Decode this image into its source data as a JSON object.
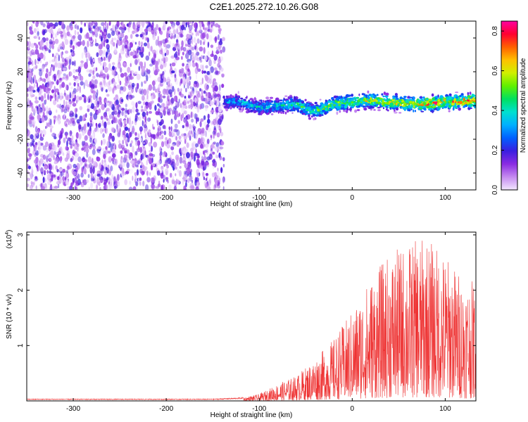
{
  "title": "C2E1.2025.272.10.26.G08",
  "chart_data": [
    {
      "type": "heatmap",
      "xlabel": "Height of straight line (km)",
      "ylabel": "Frequency (Hz)",
      "xlim": [
        -350,
        133
      ],
      "ylim": [
        -50,
        50
      ],
      "xticks": [
        -300,
        -200,
        -100,
        0,
        100
      ],
      "yticks": [
        -40,
        -20,
        0,
        20,
        40
      ],
      "colorbar": {
        "label": "Normalized spectral amplitude",
        "range": [
          0,
          0.85
        ],
        "ticks": [
          0.0,
          0.2,
          0.4,
          0.6,
          0.8
        ],
        "colors": [
          "#f2e6ff",
          "#c58af0",
          "#8a2be2",
          "#3a1ee0",
          "#0060ff",
          "#00b0ff",
          "#00e0d0",
          "#00e060",
          "#60f000",
          "#d0f000",
          "#ffc000",
          "#ff6000",
          "#ff0030",
          "#ff00a0"
        ]
      },
      "noise_region": {
        "x_from": -350,
        "x_to": -138,
        "amplitude": [
          0.0,
          0.2
        ]
      },
      "signal_band": {
        "x_from": -138,
        "x_to": 133,
        "center_frequency": [
          [
            -138,
            2
          ],
          [
            -120,
            2
          ],
          [
            -100,
            -1
          ],
          [
            -80,
            0
          ],
          [
            -60,
            1
          ],
          [
            -45,
            -3
          ],
          [
            -30,
            -2
          ],
          [
            -20,
            1
          ],
          [
            0,
            2
          ],
          [
            20,
            3
          ],
          [
            40,
            2
          ],
          [
            60,
            1
          ],
          [
            80,
            1
          ],
          [
            100,
            2
          ],
          [
            133,
            3
          ]
        ],
        "half_width_hz": 4,
        "peak_amplitude": 0.85
      }
    },
    {
      "type": "line",
      "xlabel": "Height of straight line (km)",
      "ylabel": "SNR (10 * v/v)",
      "multiplier_label": "(x10",
      "multiplier_exponent": "4",
      "multiplier_close": ")",
      "xlim": [
        -350,
        133
      ],
      "ylim": [
        0,
        3.05
      ],
      "xticks": [
        -300,
        -200,
        -100,
        0,
        100
      ],
      "yticks": [
        1,
        2,
        3
      ],
      "color": "#ee3333",
      "envelope": [
        [
          -350,
          0.03
        ],
        [
          -150,
          0.03
        ],
        [
          -120,
          0.05
        ],
        [
          -100,
          0.12
        ],
        [
          -80,
          0.3
        ],
        [
          -60,
          0.45
        ],
        [
          -40,
          0.75
        ],
        [
          -20,
          1.1
        ],
        [
          0,
          1.6
        ],
        [
          20,
          2.2
        ],
        [
          40,
          2.6
        ],
        [
          60,
          2.8
        ],
        [
          80,
          2.9
        ],
        [
          100,
          2.6
        ],
        [
          120,
          2.2
        ],
        [
          133,
          2.1
        ]
      ]
    }
  ]
}
